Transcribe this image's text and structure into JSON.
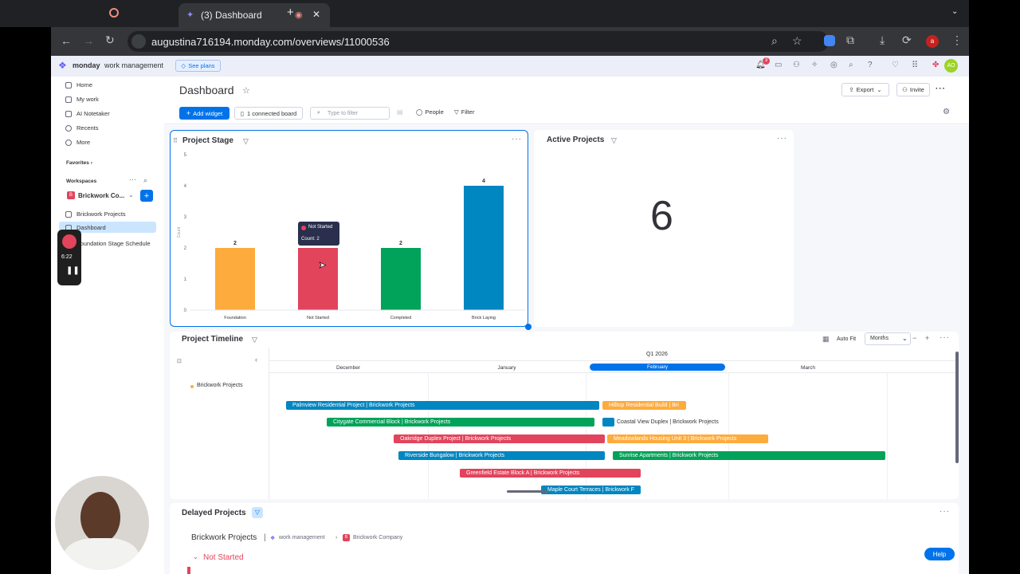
{
  "browser": {
    "tab_title": "(3) Dashboard",
    "url": "augustina716194.monday.com/overviews/11000536"
  },
  "topbar": {
    "brand": "monday",
    "brand_sub": "work management",
    "see_plans": "See plans",
    "notif_count": "3",
    "avatar": "AO"
  },
  "sidebar": {
    "items": [
      {
        "label": "Home"
      },
      {
        "label": "My work"
      },
      {
        "label": "AI Notetaker"
      },
      {
        "label": "Recents"
      },
      {
        "label": "More"
      }
    ],
    "favorites": "Favorites",
    "workspaces": "Workspaces",
    "workspace_name": "Brickwork Co...",
    "workspace_badge": "B",
    "boards": [
      {
        "label": "Brickwork Projects"
      },
      {
        "label": "Dashboard"
      },
      {
        "label": "Foundation Stage Schedule"
      }
    ]
  },
  "recorder": {
    "time": "6:22"
  },
  "header": {
    "title": "Dashboard",
    "export": "Export",
    "invite": "Invite"
  },
  "toolbar": {
    "add_widget": "Add widget",
    "connected": "1 connected board",
    "filter_placeholder": "Type to filter",
    "people": "People",
    "filter": "Filter"
  },
  "project_stage": {
    "title": "Project Stage",
    "tooltip_label": "Not Started",
    "tooltip_count": "Count: 2"
  },
  "chart_data": {
    "type": "bar",
    "categories": [
      "Foundation",
      "Not Started",
      "Completed",
      "Brick Laying"
    ],
    "values": [
      2,
      2,
      2,
      4
    ],
    "colors": [
      "#fdab3d",
      "#e2445c",
      "#00a359",
      "#0086c0"
    ],
    "ylabel": "Count",
    "ylim": [
      0,
      5
    ],
    "yticks": [
      "0",
      "1",
      "2",
      "3",
      "4",
      "5"
    ]
  },
  "active_projects": {
    "title": "Active Projects",
    "value": "6"
  },
  "timeline": {
    "title": "Project Timeline",
    "auto_fit": "Auto Fit",
    "scale": "Months",
    "quarter": "Q1 2026",
    "months": [
      "December",
      "January",
      "February",
      "March"
    ],
    "group": "Brickwork Projects",
    "bars": [
      {
        "label": "Palmview Residential Project | Brickwork Projects",
        "color": "#0086c0"
      },
      {
        "label": "Hilltop Residential Build | Bri",
        "color": "#fdab3d"
      },
      {
        "label": "Citygate Commercial Block | Brickwork Projects",
        "color": "#00a359"
      },
      {
        "label": "Coastal View Duplex | Brickwork Projects",
        "color": "#0086c0"
      },
      {
        "label": "Oakridge Duplex Project | Brickwork Projects",
        "color": "#e2445c"
      },
      {
        "label": "Meadowlands Housing Unit 3 | Brickwork Projects",
        "color": "#fdab3d"
      },
      {
        "label": "Riverside Bungalow | Brickwork Projects",
        "color": "#0086c0"
      },
      {
        "label": "Sunrise Apartments | Brickwork Projects",
        "color": "#00a359"
      },
      {
        "label": "Greenfield Estate Block A | Brickwork Projects",
        "color": "#e2445c"
      },
      {
        "label": "Maple Court Terraces | Brickwork F",
        "color": "#0086c0"
      }
    ]
  },
  "delayed": {
    "title": "Delayed Projects",
    "board": "Brickwork Projects",
    "crumb1": "work management",
    "crumb2": "Brickwork Company",
    "group": "Not Started",
    "help": "Help"
  }
}
